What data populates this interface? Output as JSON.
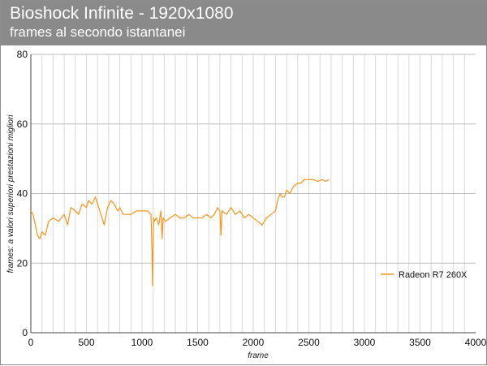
{
  "header": {
    "title": "Bioshock Infinite - 1920x1080",
    "subtitle": "frames al secondo istantanei"
  },
  "colors": {
    "header_bg": "#8a8a8a",
    "series": "#f7931e",
    "grid": "#d9d9d9"
  },
  "chart_data": {
    "type": "line",
    "title": "Bioshock Infinite - 1920x1080",
    "subtitle": "frames al secondo istantanei",
    "xlabel": "frame",
    "ylabel": "frames: a valori superiori prestazioni migliori",
    "xlim": [
      0,
      4000
    ],
    "ylim": [
      0,
      80
    ],
    "xticks": [
      0,
      500,
      1000,
      1500,
      2000,
      2500,
      3000,
      3500,
      4000
    ],
    "yticks": [
      0,
      20,
      40,
      60,
      80
    ],
    "grid": "vertical every 100 frames, horizontal every 20 fps",
    "legend_position": "right",
    "series": [
      {
        "name": "Radeon R7 260X",
        "color": "#f7931e",
        "x": [
          0,
          20,
          40,
          60,
          80,
          100,
          130,
          160,
          200,
          250,
          300,
          330,
          360,
          400,
          430,
          460,
          500,
          520,
          550,
          580,
          610,
          630,
          660,
          690,
          720,
          750,
          780,
          800,
          830,
          860,
          900,
          950,
          1000,
          1050,
          1080,
          1090,
          1095,
          1100,
          1105,
          1110,
          1130,
          1150,
          1170,
          1180,
          1190,
          1210,
          1250,
          1300,
          1340,
          1380,
          1420,
          1460,
          1500,
          1540,
          1580,
          1620,
          1650,
          1680,
          1700,
          1710,
          1720,
          1760,
          1800,
          1840,
          1880,
          1920,
          1960,
          2000,
          2040,
          2080,
          2120,
          2160,
          2200,
          2220,
          2240,
          2260,
          2280,
          2300,
          2330,
          2360,
          2400,
          2430,
          2460,
          2500,
          2540,
          2580,
          2620,
          2650,
          2680
        ],
        "y": [
          35,
          34,
          31,
          28,
          27,
          29,
          28,
          32,
          33,
          32,
          34,
          31,
          36,
          35,
          34,
          37,
          36,
          38,
          37,
          39,
          36,
          34,
          31,
          36,
          38,
          37,
          35,
          36,
          34,
          34,
          34,
          35,
          35,
          35,
          34,
          23,
          13.5,
          27,
          33,
          32,
          33,
          31,
          35,
          27,
          33,
          32,
          33,
          34,
          33,
          33,
          34,
          33,
          33,
          33,
          34,
          33,
          34,
          36,
          35,
          28,
          35,
          34,
          36,
          34,
          35,
          33,
          34,
          33,
          32,
          31,
          33,
          34,
          35,
          38,
          40,
          39,
          39,
          41,
          40,
          42,
          43,
          43,
          44,
          44,
          44,
          43.5,
          44,
          43.5,
          44
        ]
      }
    ]
  }
}
